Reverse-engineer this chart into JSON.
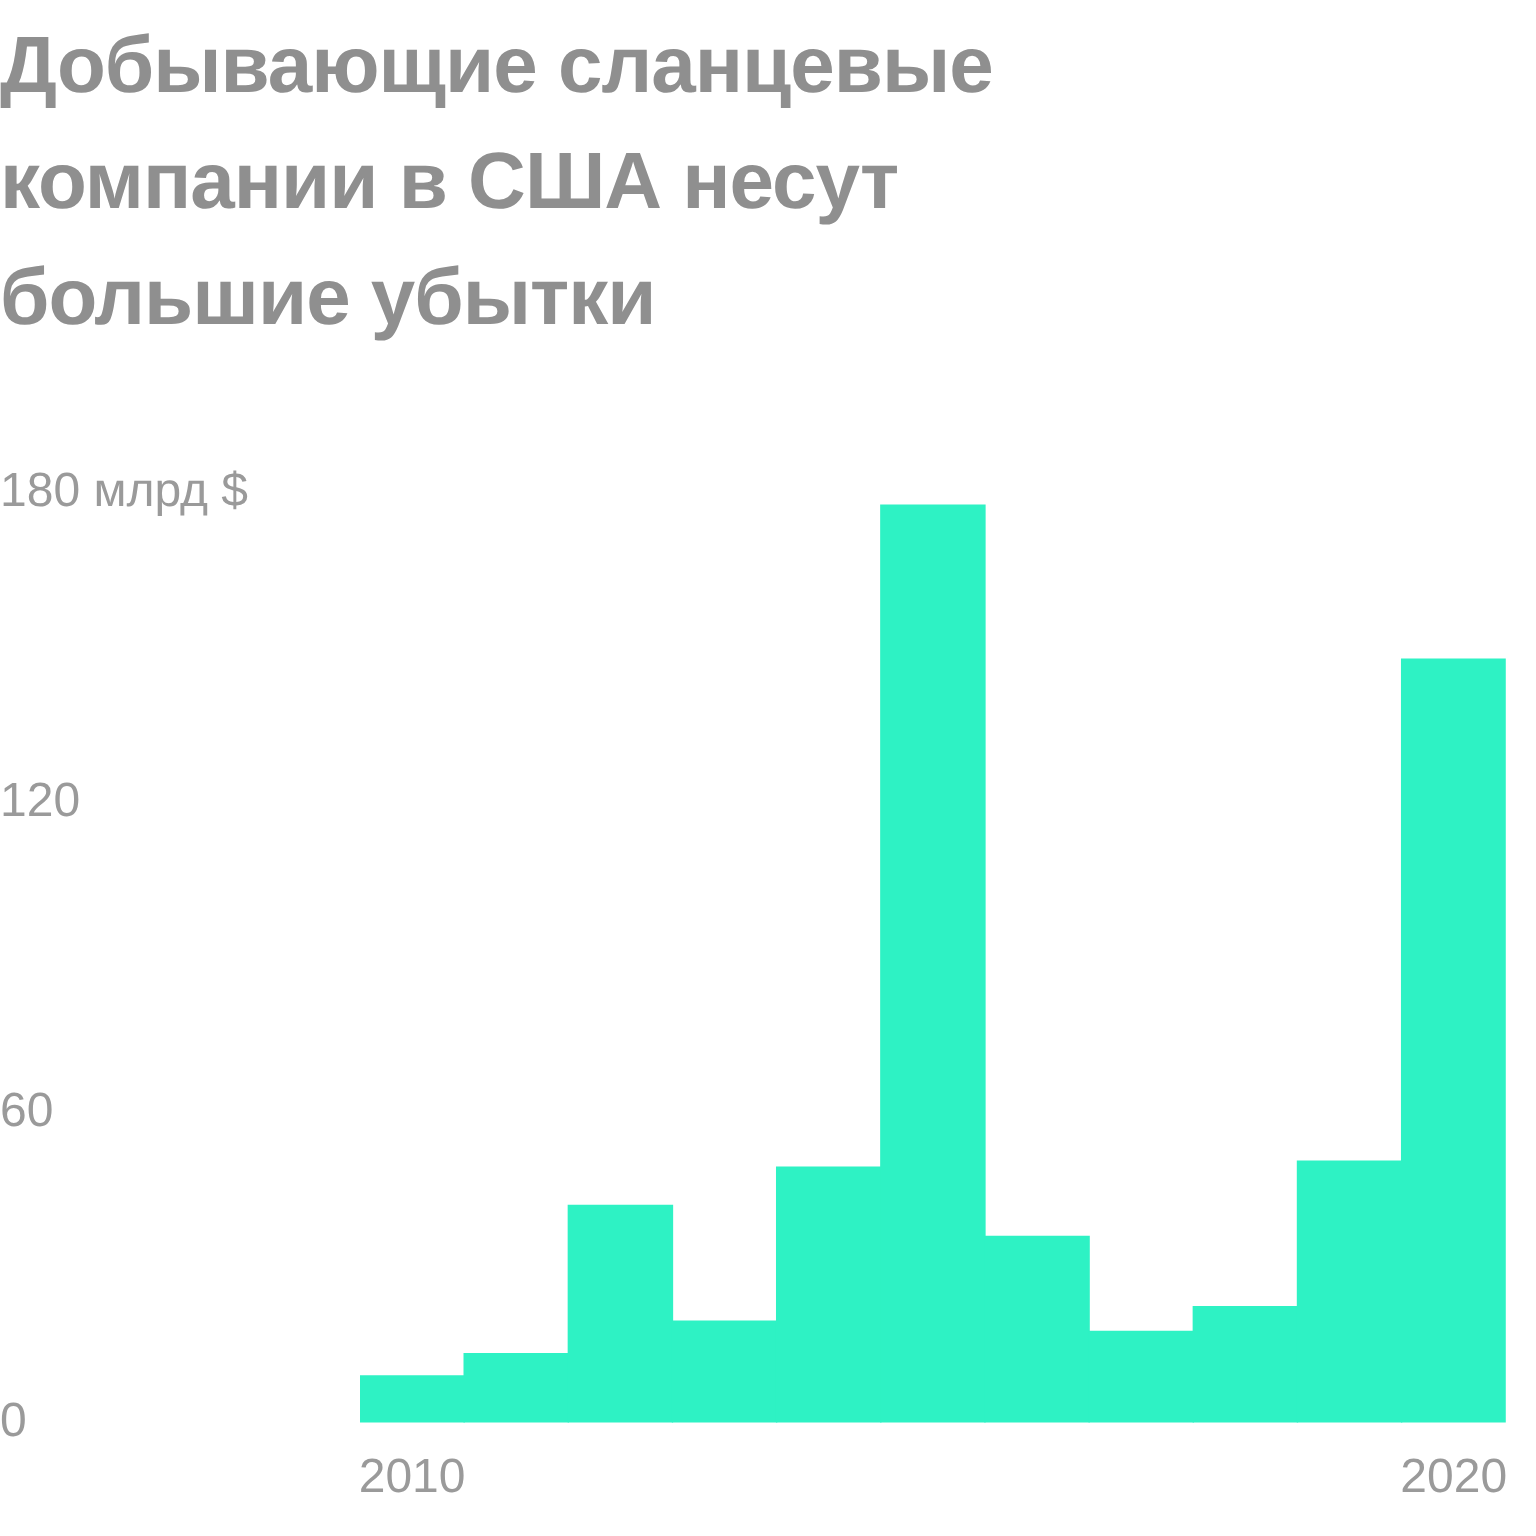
{
  "chart_data": {
    "type": "bar",
    "title": "Добывающие сланцевые компании в США несут большие убытки",
    "categories": [
      "2010",
      null,
      null,
      null,
      null,
      null,
      null,
      null,
      null,
      null,
      "2020"
    ],
    "values": [
      9,
      13.3,
      42,
      19.6,
      49.4,
      177.6,
      36,
      17.6,
      22.4,
      50.6,
      147.8
    ],
    "color": "#2ef2c4",
    "ylim": [
      0,
      180
    ],
    "yticks": [
      0,
      60,
      120,
      {
        "value": 180,
        "label": "180 млрд $"
      }
    ],
    "grid": false,
    "legend": false
  }
}
